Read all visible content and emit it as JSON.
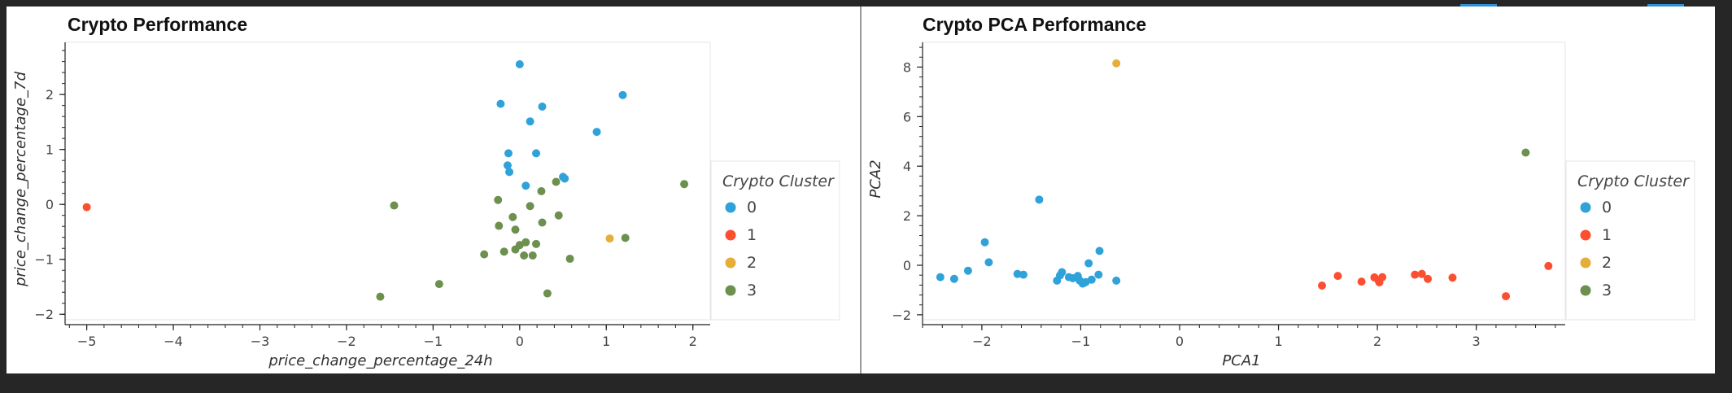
{
  "colors": {
    "0": "#30a2da",
    "1": "#fc4f30",
    "2": "#e5ae38",
    "3": "#6d904f"
  },
  "chart_data": [
    {
      "type": "scatter",
      "title": "Crypto Performance",
      "xlabel": "price_change_percentage_24h",
      "ylabel": "price_change_percentage_7d",
      "xlim": [
        -5.25,
        2.2
      ],
      "ylim": [
        -2.1,
        2.95
      ],
      "xticks": [
        -5,
        -4,
        -3,
        -2,
        -1,
        0,
        1,
        2
      ],
      "yticks": [
        -2,
        -1,
        0,
        1,
        2
      ],
      "legend": {
        "title": "Crypto Cluster",
        "position": "right"
      },
      "series": [
        {
          "name": "0",
          "points": [
            [
              0.0,
              2.55
            ],
            [
              -0.22,
              1.83
            ],
            [
              0.26,
              1.78
            ],
            [
              1.19,
              1.99
            ],
            [
              0.12,
              1.51
            ],
            [
              0.89,
              1.32
            ],
            [
              -0.13,
              0.93
            ],
            [
              0.19,
              0.93
            ],
            [
              -0.14,
              0.71
            ],
            [
              -0.12,
              0.59
            ],
            [
              0.07,
              0.34
            ],
            [
              0.5,
              0.5
            ],
            [
              0.52,
              0.47
            ]
          ]
        },
        {
          "name": "1",
          "points": [
            [
              -5.0,
              -0.05
            ]
          ]
        },
        {
          "name": "2",
          "points": [
            [
              1.04,
              -0.62
            ]
          ]
        },
        {
          "name": "3",
          "points": [
            [
              1.9,
              0.37
            ],
            [
              1.22,
              -0.61
            ],
            [
              -1.45,
              -0.02
            ],
            [
              -0.25,
              0.08
            ],
            [
              0.12,
              -0.03
            ],
            [
              0.25,
              0.24
            ],
            [
              0.42,
              0.41
            ],
            [
              0.45,
              -0.2
            ],
            [
              -0.08,
              -0.23
            ],
            [
              -0.24,
              -0.39
            ],
            [
              -0.05,
              -0.46
            ],
            [
              0.26,
              -0.33
            ],
            [
              0.07,
              -0.69
            ],
            [
              0.0,
              -0.74
            ],
            [
              0.19,
              -0.72
            ],
            [
              -0.05,
              -0.82
            ],
            [
              -0.18,
              -0.86
            ],
            [
              -0.41,
              -0.91
            ],
            [
              0.05,
              -0.93
            ],
            [
              0.15,
              -0.93
            ],
            [
              0.58,
              -0.99
            ],
            [
              -0.93,
              -1.45
            ],
            [
              0.32,
              -1.62
            ],
            [
              -1.61,
              -1.68
            ]
          ]
        }
      ]
    },
    {
      "type": "scatter",
      "title": "Crypto PCA Performance",
      "xlabel": "PCA1",
      "ylabel": "PCA2",
      "xlim": [
        -2.6,
        3.9
      ],
      "ylim": [
        -2.2,
        9.0
      ],
      "xticks": [
        -2,
        -1,
        0,
        1,
        2,
        3
      ],
      "yticks": [
        -2,
        0,
        2,
        4,
        6,
        8
      ],
      "legend": {
        "title": "Crypto Cluster",
        "position": "right"
      },
      "series": [
        {
          "name": "0",
          "points": [
            [
              -2.42,
              -0.48
            ],
            [
              -2.28,
              -0.55
            ],
            [
              -2.14,
              -0.22
            ],
            [
              -1.97,
              0.93
            ],
            [
              -1.93,
              0.12
            ],
            [
              -1.64,
              -0.35
            ],
            [
              -1.58,
              -0.38
            ],
            [
              -1.42,
              2.65
            ],
            [
              -1.24,
              -0.62
            ],
            [
              -1.21,
              -0.41
            ],
            [
              -1.19,
              -0.28
            ],
            [
              -1.12,
              -0.48
            ],
            [
              -1.08,
              -0.52
            ],
            [
              -1.03,
              -0.43
            ],
            [
              -1.01,
              -0.62
            ],
            [
              -0.98,
              -0.74
            ],
            [
              -0.95,
              -0.68
            ],
            [
              -0.92,
              0.08
            ],
            [
              -0.89,
              -0.58
            ],
            [
              -0.82,
              -0.38
            ],
            [
              -0.81,
              0.58
            ],
            [
              -0.64,
              -0.62
            ]
          ]
        },
        {
          "name": "1",
          "points": [
            [
              1.44,
              -0.82
            ],
            [
              1.6,
              -0.43
            ],
            [
              1.84,
              -0.66
            ],
            [
              1.97,
              -0.49
            ],
            [
              2.01,
              -0.6
            ],
            [
              2.02,
              -0.69
            ],
            [
              2.05,
              -0.48
            ],
            [
              2.38,
              -0.38
            ],
            [
              2.45,
              -0.35
            ],
            [
              2.51,
              -0.55
            ],
            [
              2.76,
              -0.5
            ],
            [
              3.3,
              -1.25
            ],
            [
              3.73,
              -0.03
            ]
          ]
        },
        {
          "name": "2",
          "points": [
            [
              -0.64,
              8.15
            ]
          ]
        },
        {
          "name": "3",
          "points": [
            [
              3.5,
              4.55
            ]
          ]
        }
      ]
    }
  ]
}
